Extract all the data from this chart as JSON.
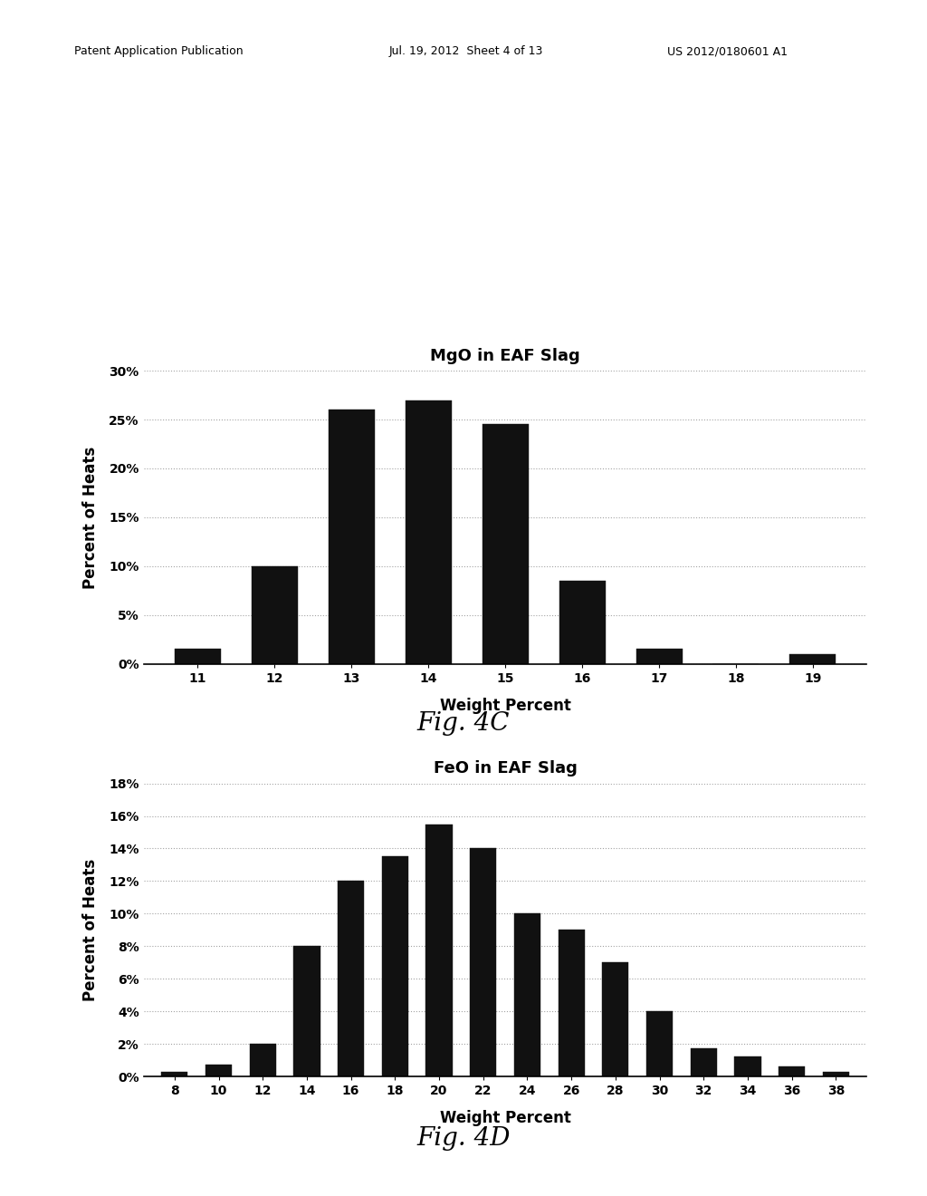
{
  "chart1": {
    "title": "MgO in EAF Slag",
    "xlabel": "Weight Percent",
    "ylabel": "Percent of Heats",
    "categories": [
      11,
      12,
      13,
      14,
      15,
      16,
      17,
      18,
      19
    ],
    "values": [
      1.5,
      10.0,
      26.0,
      27.0,
      24.5,
      8.5,
      1.5,
      0.0,
      1.0
    ],
    "ylim": [
      0,
      0.3
    ],
    "yticks": [
      0.0,
      0.05,
      0.1,
      0.15,
      0.2,
      0.25,
      0.3
    ],
    "ytick_labels": [
      "0%",
      "5%",
      "10%",
      "15%",
      "20%",
      "25%",
      "30%"
    ],
    "fig_label": "Fig. 4C"
  },
  "chart2": {
    "title": "FeO in EAF Slag",
    "xlabel": "Weight Percent",
    "ylabel": "Percent of Heats",
    "categories": [
      8,
      10,
      12,
      14,
      16,
      18,
      20,
      22,
      24,
      26,
      28,
      30,
      32,
      34,
      36,
      38
    ],
    "values": [
      0.3,
      0.7,
      2.0,
      8.0,
      12.0,
      13.5,
      15.5,
      14.0,
      10.0,
      9.0,
      7.0,
      4.0,
      1.7,
      1.2,
      0.6,
      0.3
    ],
    "ylim": [
      0,
      0.18
    ],
    "yticks": [
      0.0,
      0.02,
      0.04,
      0.06,
      0.08,
      0.1,
      0.12,
      0.14,
      0.16,
      0.18
    ],
    "ytick_labels": [
      "0%",
      "2%",
      "4%",
      "6%",
      "8%",
      "10%",
      "12%",
      "14%",
      "16%",
      "18%"
    ],
    "fig_label": "Fig. 4D"
  },
  "bar_color": "#111111",
  "grid_color": "#999999",
  "background_color": "#ffffff",
  "header_left": "Patent Application Publication",
  "header_mid": "Jul. 19, 2012  Sheet 4 of 13",
  "header_right": "US 2012/0180601 A1",
  "title_fontsize": 13,
  "label_fontsize": 12,
  "tick_fontsize": 10,
  "fig_label_fontsize": 20
}
